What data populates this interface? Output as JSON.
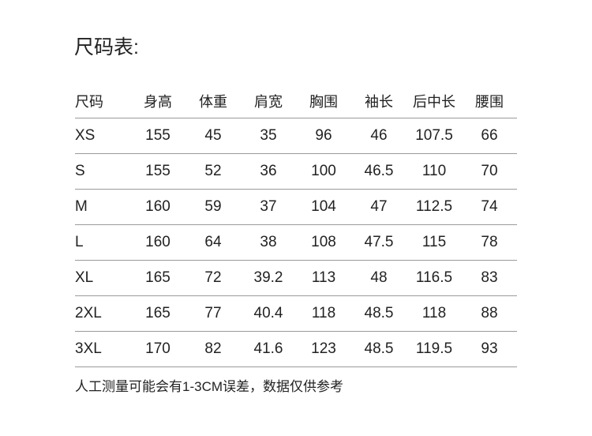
{
  "title": "尺码表:",
  "table": {
    "headers": [
      "尺码",
      "身高",
      "体重",
      "肩宽",
      "胸围",
      "袖长",
      "后中长",
      "腰围"
    ],
    "rows": [
      [
        "XS",
        "155",
        "45",
        "35",
        "96",
        "46",
        "107.5",
        "66"
      ],
      [
        "S",
        "155",
        "52",
        "36",
        "100",
        "46.5",
        "110",
        "70"
      ],
      [
        "M",
        "160",
        "59",
        "37",
        "104",
        "47",
        "112.5",
        "74"
      ],
      [
        "L",
        "160",
        "64",
        "38",
        "108",
        "47.5",
        "115",
        "78"
      ],
      [
        "XL",
        "165",
        "72",
        "39.2",
        "113",
        "48",
        "116.5",
        "83"
      ],
      [
        "2XL",
        "165",
        "77",
        "40.4",
        "118",
        "48.5",
        "118",
        "88"
      ],
      [
        "3XL",
        "170",
        "82",
        "41.6",
        "123",
        "48.5",
        "119.5",
        "93"
      ]
    ]
  },
  "note": "人工测量可能会有1-3CM误差，数据仅供参考"
}
